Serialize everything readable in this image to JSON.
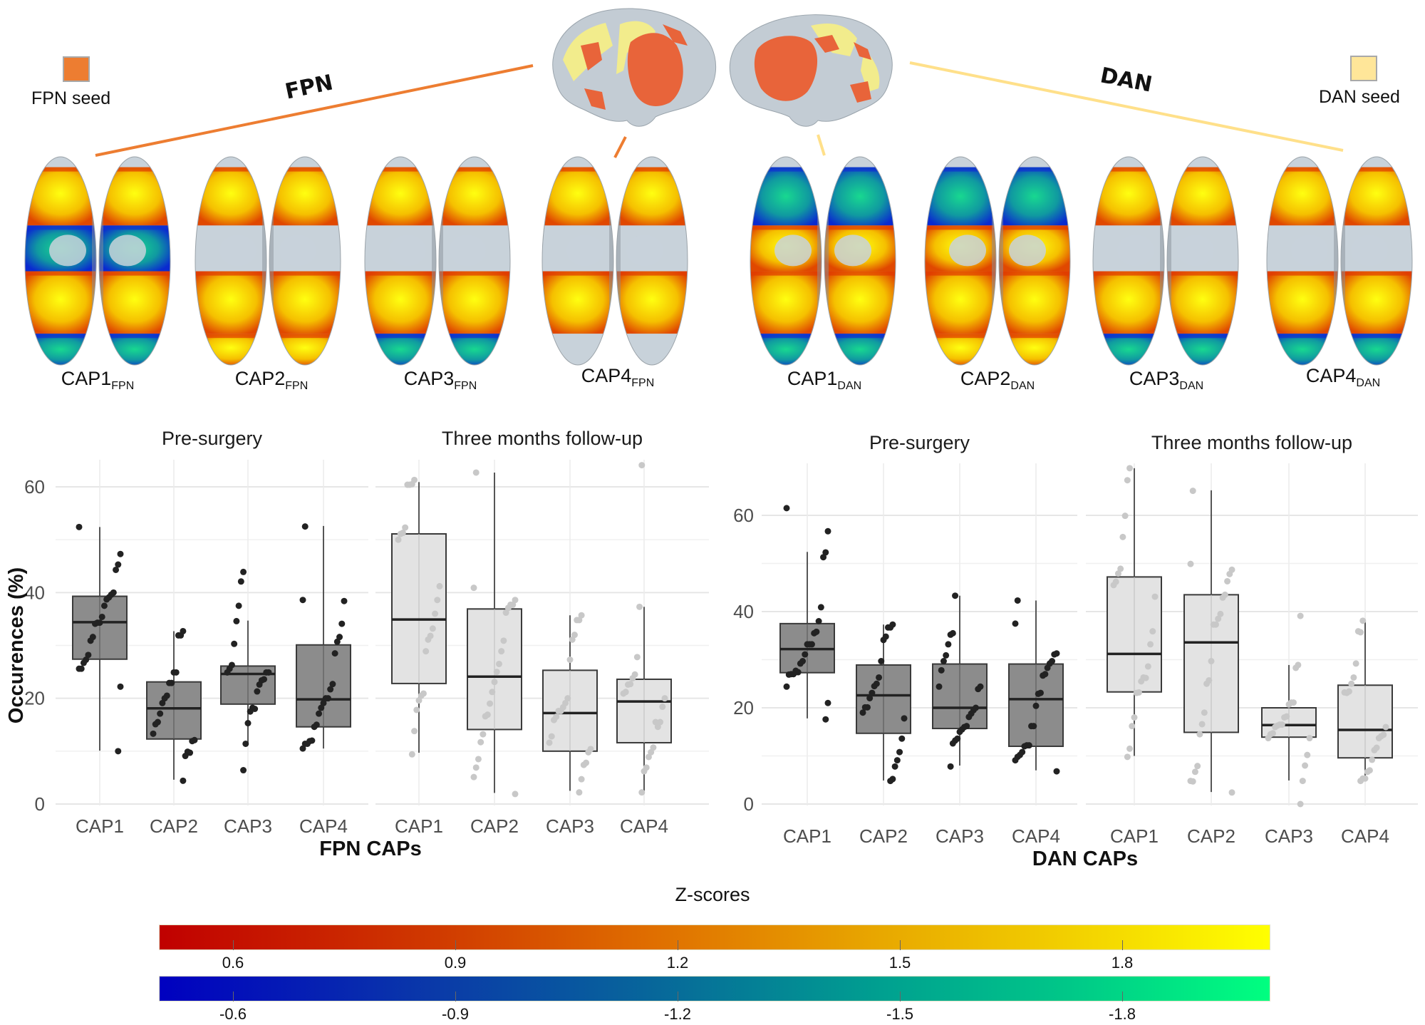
{
  "legend": {
    "fpn_seed_label": "FPN seed",
    "fpn_seed_color": "#ed7d31",
    "dan_seed_label": "DAN seed",
    "dan_seed_color": "#ffe699",
    "fpn_network_label": "FPN",
    "dan_network_label": "DAN"
  },
  "brain_maps": {
    "fpn": [
      {
        "label": "CAP1",
        "subscript": "FPN"
      },
      {
        "label": "CAP2",
        "subscript": "FPN"
      },
      {
        "label": "CAP3",
        "subscript": "FPN"
      },
      {
        "label": "CAP4",
        "subscript": "FPN"
      }
    ],
    "dan": [
      {
        "label": "CAP1",
        "subscript": "DAN"
      },
      {
        "label": "CAP2",
        "subscript": "DAN"
      },
      {
        "label": "CAP3",
        "subscript": "DAN"
      },
      {
        "label": "CAP4",
        "subscript": "DAN"
      }
    ]
  },
  "colorbar": {
    "title": "Z-scores",
    "positive": {
      "range": [
        0.5,
        2.0
      ],
      "ticks": [
        "0.6",
        "0.9",
        "1.2",
        "1.5",
        "1.8"
      ],
      "tick_values": [
        0.6,
        0.9,
        1.2,
        1.5,
        1.8
      ],
      "colors": [
        "#c00000",
        "#d84a00",
        "#e6a000",
        "#ffff00"
      ]
    },
    "negative": {
      "range": [
        -0.5,
        -2.0
      ],
      "ticks": [
        "-0.6",
        "-0.9",
        "-1.2",
        "-1.5",
        "-1.8"
      ],
      "tick_values": [
        -0.6,
        -0.9,
        -1.2,
        -1.5,
        -1.8
      ],
      "colors": [
        "#0000c0",
        "#0a6aa0",
        "#00a890",
        "#00ff80"
      ]
    }
  },
  "chart_data": [
    {
      "type": "box",
      "id": "fpn",
      "title": "",
      "xlabel": "FPN CAPs",
      "ylabel": "Occurences (%)",
      "ylim": [
        0,
        65
      ],
      "yticks": [
        0,
        20,
        40,
        60
      ],
      "ytick_labels": [
        "0",
        "20",
        "40",
        "60"
      ],
      "grid": true,
      "categories": [
        "CAP1",
        "CAP2",
        "CAP3",
        "CAP4"
      ],
      "facets": [
        {
          "title": "Pre-surgery",
          "box_fill": "#8c8c8c",
          "point_color": "#222222",
          "boxes": [
            {
              "category": "CAP1",
              "whisker_low": 10.1,
              "q1": 27.4,
              "median": 34.4,
              "q3": 39.3,
              "whisker_high": 52.4,
              "points": [
                52.4,
                47.3,
                45.3,
                44.3,
                40.0,
                39.6,
                39.1,
                38.7,
                37.5,
                35.4,
                34.3,
                34.3,
                34.1,
                31.6,
                30.9,
                28.2,
                27.3,
                26.7,
                25.6,
                25.6,
                22.2,
                10.0
              ]
            },
            {
              "category": "CAP2",
              "whisker_low": 4.6,
              "q1": 12.3,
              "median": 18.1,
              "q3": 23.1,
              "whisker_high": 32.7,
              "points": [
                32.7,
                31.9,
                31.9,
                24.9,
                24.9,
                22.9,
                22.9,
                20.5,
                20.0,
                19.1,
                17.1,
                15.5,
                15.1,
                13.3,
                12.1,
                11.9,
                9.7,
                9.9,
                9.1,
                4.4
              ]
            },
            {
              "category": "CAP3",
              "whisker_low": 11.5,
              "q1": 18.9,
              "median": 24.6,
              "q3": 26.1,
              "whisker_high": 34.7,
              "points": [
                43.9,
                42.1,
                37.5,
                34.6,
                30.3,
                26.3,
                25.6,
                24.9,
                24.9,
                24.9,
                23.6,
                23.4,
                22.6,
                21.3,
                18.0,
                18.2,
                17.5,
                15.3,
                11.4,
                6.4
              ]
            },
            {
              "category": "CAP4",
              "whisker_low": 10.5,
              "q1": 14.6,
              "median": 19.8,
              "q3": 30.1,
              "whisker_high": 52.6,
              "points": [
                52.5,
                38.6,
                38.4,
                34.1,
                31.6,
                30.7,
                28.5,
                22.7,
                21.7,
                20.0,
                20.0,
                19.1,
                18.2,
                17.1,
                15.0,
                14.6,
                12.0,
                11.9,
                11.4,
                11.4,
                10.5
              ]
            }
          ]
        },
        {
          "title": "Three months follow-up",
          "box_fill": "#e3e3e3",
          "point_color": "#c8c8c8",
          "boxes": [
            {
              "category": "CAP1",
              "whisker_low": 9.7,
              "q1": 22.8,
              "median": 34.9,
              "q3": 51.1,
              "whisker_high": 60.9,
              "points": [
                61.3,
                60.5,
                60.4,
                60.4,
                52.3,
                51.3,
                51.1,
                50.0,
                41.2,
                38.6,
                36.0,
                33.2,
                31.8,
                31.1,
                28.9,
                20.9,
                20.5,
                19.6,
                17.8,
                13.8,
                9.4
              ]
            },
            {
              "category": "CAP2",
              "whisker_low": 2.1,
              "q1": 14.1,
              "median": 24.1,
              "q3": 36.9,
              "whisker_high": 62.7,
              "points": [
                62.7,
                40.9,
                38.6,
                37.7,
                37.7,
                37.1,
                36.2,
                30.9,
                28.9,
                26.5,
                25.0,
                23.1,
                21.2,
                19.0,
                16.9,
                16.6,
                13.2,
                11.7,
                8.5,
                6.9,
                5.1,
                1.9
              ]
            },
            {
              "category": "CAP3",
              "whisker_low": 2.5,
              "q1": 10.0,
              "median": 17.2,
              "q3": 25.3,
              "whisker_high": 35.7,
              "points": [
                35.7,
                34.8,
                34.8,
                32.0,
                31.1,
                27.3,
                20.0,
                19.1,
                18.3,
                17.6,
                17.6,
                16.5,
                15.9,
                12.8,
                11.6,
                10.4,
                9.8,
                7.8,
                7.4,
                4.7,
                2.2
              ]
            },
            {
              "category": "CAP4",
              "whisker_low": 2.5,
              "q1": 11.6,
              "median": 19.4,
              "q3": 23.6,
              "whisker_high": 37.3,
              "points": [
                64.1,
                37.3,
                27.8,
                24.5,
                23.8,
                22.7,
                22.6,
                21.2,
                20.9,
                20.0,
                18.4,
                15.5,
                14.6,
                15.5,
                10.7,
                9.8,
                8.9,
                6.9,
                6.2,
                2.2
              ]
            }
          ]
        }
      ]
    },
    {
      "type": "box",
      "id": "dan",
      "title": "",
      "xlabel": "DAN CAPs",
      "ylabel": "",
      "ylim": [
        0,
        70
      ],
      "yticks": [
        0,
        20,
        40,
        60
      ],
      "ytick_labels": [
        "0",
        "20",
        "40",
        "60"
      ],
      "grid": true,
      "categories": [
        "CAP1",
        "CAP2",
        "CAP3",
        "CAP4"
      ],
      "facets": [
        {
          "title": "Pre-surgery",
          "box_fill": "#8c8c8c",
          "point_color": "#222222",
          "boxes": [
            {
              "category": "CAP1",
              "whisker_low": 17.8,
              "q1": 27.3,
              "median": 32.2,
              "q3": 37.5,
              "whisker_high": 52.4,
              "points": [
                61.5,
                56.7,
                52.3,
                51.3,
                40.9,
                38.0,
                35.8,
                35.5,
                33.2,
                33.2,
                33.2,
                31.1,
                29.7,
                29.2,
                27.4,
                27.7,
                27.0,
                27.0,
                26.9,
                24.4,
                21.0,
                17.6
              ]
            },
            {
              "category": "CAP2",
              "whisker_low": 4.9,
              "q1": 14.7,
              "median": 22.6,
              "q3": 28.9,
              "whisker_high": 37.3,
              "points": [
                37.3,
                36.7,
                36.7,
                34.8,
                34.1,
                29.7,
                26.3,
                25.0,
                24.5,
                23.1,
                22.0,
                20.1,
                20.1,
                19.0,
                17.8,
                13.6,
                10.8,
                9.1,
                7.8,
                5.2,
                4.8
              ]
            },
            {
              "category": "CAP3",
              "whisker_low": 8.0,
              "q1": 15.7,
              "median": 20.0,
              "q3": 29.1,
              "whisker_high": 43.3,
              "points": [
                43.3,
                35.5,
                35.2,
                33.2,
                30.9,
                29.7,
                27.8,
                24.4,
                24.4,
                23.9,
                20.0,
                19.5,
                18.8,
                18.1,
                16.2,
                16.0,
                15.5,
                15.0,
                13.6,
                13.2,
                12.6,
                7.8
              ]
            },
            {
              "category": "CAP4",
              "whisker_low": 7.0,
              "q1": 12.0,
              "median": 21.8,
              "q3": 29.1,
              "whisker_high": 42.3,
              "points": [
                42.3,
                37.5,
                31.3,
                31.1,
                29.7,
                29.2,
                28.3,
                27.0,
                26.7,
                23.1,
                22.9,
                20.4,
                16.2,
                16.2,
                12.2,
                12.2,
                12.0,
                10.8,
                10.2,
                9.8,
                9.1,
                6.8
              ]
            }
          ]
        },
        {
          "title": "Three months follow-up",
          "box_fill": "#e3e3e3",
          "point_color": "#c8c8c8",
          "boxes": [
            {
              "category": "CAP1",
              "whisker_low": 10.0,
              "q1": 23.3,
              "median": 31.2,
              "q3": 47.2,
              "whisker_high": 69.8,
              "points": [
                69.8,
                67.3,
                59.9,
                55.5,
                48.9,
                47.9,
                46.2,
                45.5,
                43.1,
                35.9,
                33.2,
                28.6,
                26.2,
                26.3,
                25.5,
                23.2,
                23.1,
                18.0,
                16.2,
                11.5,
                9.8
              ]
            },
            {
              "category": "CAP2",
              "whisker_low": 2.5,
              "q1": 14.9,
              "median": 33.6,
              "q3": 43.5,
              "whisker_high": 65.2,
              "points": [
                65.1,
                49.9,
                48.7,
                47.8,
                46.3,
                43.5,
                42.9,
                39.5,
                38.5,
                37.3,
                37.3,
                29.7,
                25.7,
                25.0,
                19.0,
                16.6,
                14.5,
                7.9,
                6.7,
                4.7,
                4.8,
                2.4
              ]
            },
            {
              "category": "CAP3",
              "whisker_low": 4.9,
              "q1": 13.9,
              "median": 16.4,
              "q3": 20.0,
              "whisker_high": 28.9,
              "points": [
                39.1,
                28.9,
                28.3,
                21.1,
                21.1,
                20.7,
                18.2,
                18.0,
                16.5,
                16.5,
                16.3,
                16.0,
                14.7,
                14.5,
                13.7,
                13.7,
                10.2,
                8.0,
                4.8,
                0.0
              ]
            },
            {
              "category": "CAP4",
              "whisker_low": 4.9,
              "q1": 9.6,
              "median": 15.4,
              "q3": 24.7,
              "whisker_high": 38.1,
              "points": [
                38.1,
                35.7,
                35.9,
                29.2,
                26.3,
                25.0,
                23.4,
                23.1,
                23.2,
                16.0,
                14.4,
                14.1,
                13.7,
                11.7,
                11.2,
                9.2,
                7.0,
                6.7,
                5.3,
                5.3,
                4.8
              ]
            }
          ]
        }
      ]
    }
  ]
}
